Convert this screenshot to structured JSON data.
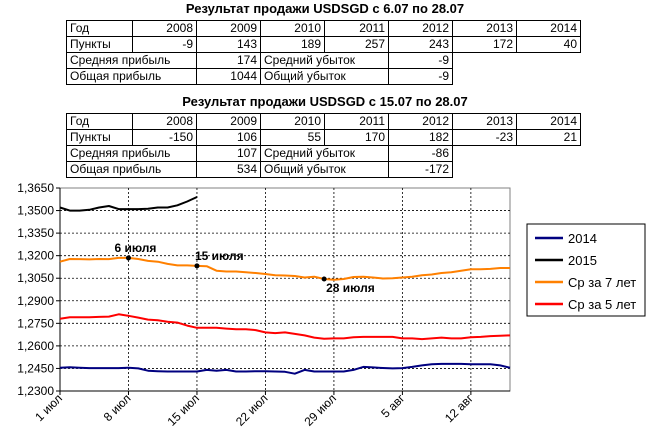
{
  "table1": {
    "title": "Результат продажи USDSGD с 6.07 по 28.07",
    "header": [
      "Год",
      "2008",
      "2009",
      "2010",
      "2011",
      "2012",
      "2013",
      "2014"
    ],
    "points": [
      "Пункты",
      "-9",
      "143",
      "189",
      "257",
      "243",
      "172",
      "40"
    ],
    "avg_profit_label": "Средняя прибыль",
    "avg_profit": "174",
    "avg_loss_label": "Средний убыток",
    "avg_loss": "-9",
    "total_profit_label": "Общая прибыль",
    "total_profit": "1044",
    "total_loss_label": "Общий убыток",
    "total_loss": "-9"
  },
  "table2": {
    "title": "Результат продажи USDSGD с 15.07 по 28.07",
    "header": [
      "Год",
      "2008",
      "2009",
      "2010",
      "2011",
      "2012",
      "2013",
      "2014"
    ],
    "points": [
      "Пункты",
      "-150",
      "106",
      "55",
      "170",
      "182",
      "-23",
      "21"
    ],
    "avg_profit_label": "Средняя прибыль",
    "avg_profit": "107",
    "avg_loss_label": "Средний убыток",
    "avg_loss": "-86",
    "total_profit_label": "Общая прибыль",
    "total_profit": "534",
    "total_loss_label": "Общий убыток",
    "total_loss": "-172"
  },
  "chart_data": {
    "type": "line",
    "ylim": [
      1.23,
      1.365
    ],
    "yticks": [
      "1,2300",
      "1,2450",
      "1,2600",
      "1,2750",
      "1,2900",
      "1,3050",
      "1,3200",
      "1,3350",
      "1,3500",
      "1,3650"
    ],
    "xticks": [
      "1 июл",
      "8 июл",
      "15 июл",
      "22 июл",
      "29 июл",
      "5 авг",
      "12 авг"
    ],
    "xtick_index": [
      0,
      7,
      14,
      21,
      28,
      35,
      42
    ],
    "n_points": 47,
    "grid": true,
    "legend_position": "right",
    "series": [
      {
        "name": "2014",
        "color": "#000080",
        "values": [
          1.2455,
          1.2458,
          1.2455,
          1.2452,
          1.2452,
          1.2452,
          1.2452,
          1.2455,
          1.245,
          1.2435,
          1.2432,
          1.243,
          1.243,
          1.243,
          1.243,
          1.244,
          1.2435,
          1.244,
          1.243,
          1.243,
          1.2432,
          1.2432,
          1.243,
          1.2428,
          1.2415,
          1.244,
          1.243,
          1.243,
          1.243,
          1.243,
          1.244,
          1.246,
          1.2457,
          1.2453,
          1.245,
          1.2452,
          1.246,
          1.247,
          1.2478,
          1.248,
          1.248,
          1.248,
          1.2478,
          1.2478,
          1.2478,
          1.247,
          1.2455
        ]
      },
      {
        "name": "2015",
        "color": "#000000",
        "values": [
          1.352,
          1.35,
          1.35,
          1.3505,
          1.352,
          1.353,
          1.351,
          1.351,
          1.351,
          1.3512,
          1.352,
          1.352,
          1.3535,
          1.356,
          1.359
        ]
      },
      {
        "name": "Ср за 7 лет",
        "color": "#ff8000",
        "values": [
          1.316,
          1.3178,
          1.3177,
          1.3175,
          1.3178,
          1.3177,
          1.3185,
          1.3185,
          1.3178,
          1.3165,
          1.316,
          1.3145,
          1.3135,
          1.3135,
          1.3132,
          1.313,
          1.31,
          1.3095,
          1.3095,
          1.309,
          1.3085,
          1.3078,
          1.307,
          1.3068,
          1.3065,
          1.3055,
          1.306,
          1.3045,
          1.304,
          1.3045,
          1.3058,
          1.306,
          1.3055,
          1.3048,
          1.305,
          1.3055,
          1.306,
          1.307,
          1.3075,
          1.3085,
          1.309,
          1.31,
          1.311,
          1.311,
          1.3112,
          1.3118,
          1.3118
        ]
      },
      {
        "name": "Ср за 5 лет",
        "color": "#ff0000",
        "values": [
          1.278,
          1.279,
          1.279,
          1.279,
          1.2793,
          1.2795,
          1.281,
          1.28,
          1.2788,
          1.2775,
          1.277,
          1.276,
          1.2755,
          1.2735,
          1.272,
          1.272,
          1.272,
          1.2715,
          1.271,
          1.271,
          1.2705,
          1.269,
          1.2685,
          1.269,
          1.268,
          1.267,
          1.2655,
          1.2648,
          1.265,
          1.265,
          1.2658,
          1.266,
          1.266,
          1.266,
          1.266,
          1.265,
          1.265,
          1.2645,
          1.265,
          1.2655,
          1.265,
          1.265,
          1.2658,
          1.266,
          1.2665,
          1.2668,
          1.267
        ]
      }
    ],
    "annotations": [
      {
        "text": "6 июля",
        "index": 7,
        "series": 2
      },
      {
        "text": "15 июля",
        "index": 14,
        "series": 2
      },
      {
        "text": "28 июля",
        "index": 27,
        "series": 2
      }
    ]
  }
}
